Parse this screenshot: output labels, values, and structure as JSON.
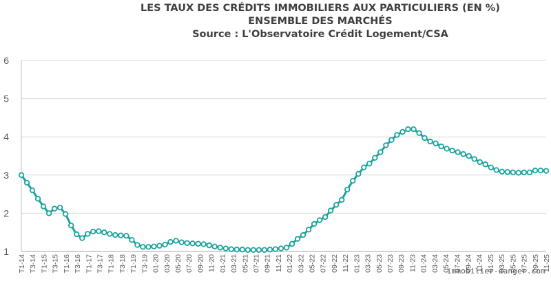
{
  "title_lines": [
    "LES TAUX DES CRÉDITS IMMOBILIERS AUX PARTICULIERS (EN %)",
    "ENSEMBLE DES MARCHÉS",
    "Source : L'Observatoire Crédit Logement/CSA"
  ],
  "watermark": "immobilier-danger.com",
  "chart_data": {
    "type": "line",
    "title": "LES TAUX DES CRÉDITS IMMOBILIERS AUX PARTICULIERS (EN %)",
    "subtitle": "ENSEMBLE DES MARCHÉS",
    "source": "Source : L'Observatoire Crédit Logement/CSA",
    "ylim": [
      1,
      6
    ],
    "yticks": [
      1,
      2,
      3,
      4,
      5,
      6
    ],
    "grid": true,
    "line_color": "#1aa39e",
    "grid_color": "#d9d9d9",
    "x_ticks": [
      "T1-14",
      "T3-14",
      "T1-15",
      "T3-15",
      "T1-16",
      "T3-16",
      "T1-17",
      "T3-17",
      "T1-18",
      "T3-18",
      "T1-19",
      "T3-19",
      "01-20",
      "03-20",
      "05-20",
      "07-20",
      "09-20",
      "11-20",
      "01-21",
      "03-21",
      "05-21",
      "07-21",
      "09-21",
      "11-21",
      "01-22",
      "03-22",
      "05-22",
      "07-22",
      "09-22",
      "11-22",
      "01-23",
      "03-23",
      "05-23",
      "07-23",
      "09-23",
      "11-23",
      "01-24",
      "03-24",
      "05-24",
      "07-24",
      "09-24",
      "11-24",
      "01-25",
      "03-25",
      "05-25",
      "07-25",
      "09-25",
      "11-25"
    ],
    "values": [
      3.0,
      2.8,
      2.6,
      2.38,
      2.18,
      2.0,
      2.12,
      2.15,
      1.98,
      1.68,
      1.45,
      1.35,
      1.46,
      1.52,
      1.53,
      1.5,
      1.46,
      1.43,
      1.42,
      1.41,
      1.3,
      1.17,
      1.12,
      1.12,
      1.13,
      1.15,
      1.18,
      1.25,
      1.28,
      1.24,
      1.22,
      1.21,
      1.2,
      1.19,
      1.16,
      1.13,
      1.1,
      1.08,
      1.06,
      1.05,
      1.05,
      1.04,
      1.04,
      1.04,
      1.04,
      1.05,
      1.06,
      1.08,
      1.1,
      1.2,
      1.33,
      1.43,
      1.57,
      1.72,
      1.82,
      1.9,
      2.07,
      2.22,
      2.35,
      2.62,
      2.85,
      3.03,
      3.2,
      3.3,
      3.45,
      3.6,
      3.78,
      3.92,
      4.05,
      4.13,
      4.2,
      4.2,
      4.1,
      3.97,
      3.88,
      3.83,
      3.75,
      3.69,
      3.64,
      3.6,
      3.55,
      3.5,
      3.42,
      3.34,
      3.28,
      3.2,
      3.13,
      3.09,
      3.08,
      3.07,
      3.06,
      3.07,
      3.07,
      3.12,
      3.12,
      3.11
    ]
  }
}
